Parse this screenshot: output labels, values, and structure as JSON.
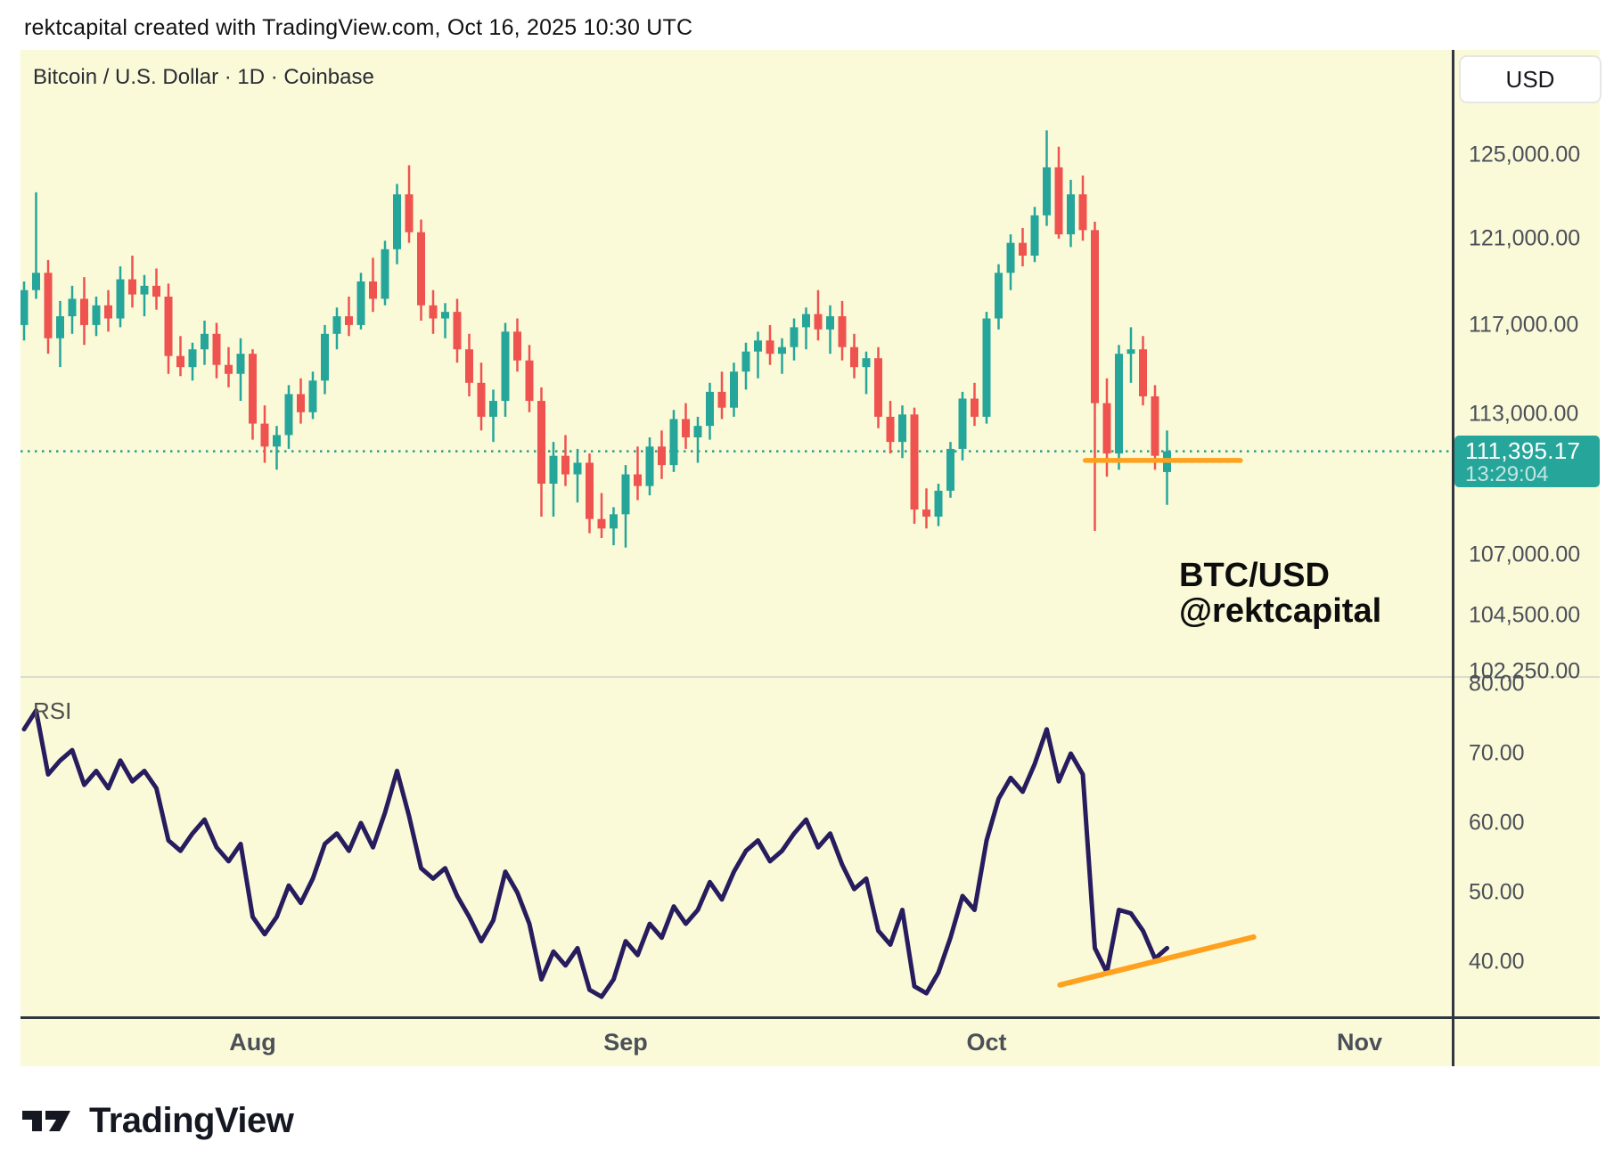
{
  "header": {
    "attribution": "rektcapital created with TradingView.com, Oct 16, 2025 10:30 UTC"
  },
  "chart": {
    "symbol_title": "Bitcoin / U.S. Dollar · 1D · Coinbase",
    "currency_button": "USD",
    "price_label": {
      "price": "111,395.17",
      "countdown": "13:29:04"
    },
    "annotation": {
      "line1": "BTC/USD",
      "line2": "@rektcapital"
    },
    "rsi_label": "RSI",
    "colors": {
      "background": "#fafad8",
      "up": "#26a69a",
      "down": "#ef5350",
      "rsi_line": "#271c5e",
      "drawing_orange": "#ffa11e",
      "current_price": "#2a9d8f"
    }
  },
  "chart_data": {
    "type": "candlestick_with_rsi",
    "title": "Bitcoin / U.S. Dollar · 1D · Coinbase",
    "price_unit": "USD thousands",
    "columns": [
      "date",
      "open",
      "high",
      "low",
      "close",
      "rsi"
    ],
    "last_price": 111395.17,
    "price_axis_ticks": [
      {
        "label": "125,000.00",
        "value": 125000
      },
      {
        "label": "121,000.00",
        "value": 121000
      },
      {
        "label": "117,000.00",
        "value": 117000
      },
      {
        "label": "113,000.00",
        "value": 113000
      },
      {
        "label": "107,000.00",
        "value": 107000
      },
      {
        "label": "104,500.00",
        "value": 104500
      },
      {
        "label": "102,250.00",
        "value": 102250
      }
    ],
    "rsi_axis_ticks": [
      {
        "label": "80.00",
        "value": 80
      },
      {
        "label": "70.00",
        "value": 70
      },
      {
        "label": "60.00",
        "value": 60
      },
      {
        "label": "50.00",
        "value": 50
      },
      {
        "label": "40.00",
        "value": 40
      }
    ],
    "time_axis_ticks": [
      {
        "label": "Aug",
        "day_index": 19
      },
      {
        "label": "Sep",
        "day_index": 50
      },
      {
        "label": "Oct",
        "day_index": 80
      },
      {
        "label": "Nov",
        "day_index": 111
      }
    ],
    "trendlines": {
      "price_support_line": {
        "price": 111000,
        "day_start": 88.2,
        "day_end": 101.1
      },
      "rsi_support_line": {
        "day_start": 86.1,
        "rsi_start": 36.7,
        "day_end": 102.2,
        "rsi_end": 43.6
      }
    },
    "candles": [
      [
        "Jul 13",
        117.0,
        119.0,
        116.3,
        118.6,
        73.5
      ],
      [
        "Jul 14",
        118.6,
        123.2,
        118.2,
        119.4,
        76.2
      ],
      [
        "Jul 15",
        119.4,
        120.0,
        115.7,
        116.4,
        67.0
      ],
      [
        "Jul 16",
        116.4,
        118.1,
        115.1,
        117.4,
        69.0
      ],
      [
        "Jul 17",
        117.4,
        118.8,
        116.6,
        118.2,
        70.5
      ],
      [
        "Jul 18",
        118.2,
        119.2,
        116.1,
        117.0,
        65.5
      ],
      [
        "Jul 19",
        117.0,
        118.3,
        116.5,
        117.9,
        67.5
      ],
      [
        "Jul 20",
        117.9,
        118.6,
        116.7,
        117.3,
        65.0
      ],
      [
        "Jul 21",
        117.3,
        119.7,
        116.9,
        119.1,
        69.0
      ],
      [
        "Jul 22",
        119.1,
        120.2,
        117.8,
        118.4,
        66.0
      ],
      [
        "Jul 23",
        118.4,
        119.3,
        117.4,
        118.8,
        67.5
      ],
      [
        "Jul 24",
        118.8,
        119.6,
        117.7,
        118.3,
        65.0
      ],
      [
        "Jul 25",
        118.3,
        118.9,
        114.8,
        115.6,
        57.5
      ],
      [
        "Jul 26",
        115.6,
        116.5,
        114.7,
        115.1,
        56.0
      ],
      [
        "Jul 27",
        115.1,
        116.2,
        114.5,
        115.9,
        58.5
      ],
      [
        "Jul 28",
        115.9,
        117.2,
        115.2,
        116.6,
        60.5
      ],
      [
        "Jul 29",
        116.6,
        117.1,
        114.6,
        115.2,
        56.5
      ],
      [
        "Jul 30",
        115.2,
        116.0,
        114.2,
        114.8,
        54.5
      ],
      [
        "Jul 31",
        114.8,
        116.4,
        113.6,
        115.7,
        57.0
      ],
      [
        "Aug 1",
        115.7,
        115.9,
        111.9,
        112.6,
        46.5
      ],
      [
        "Aug 2",
        112.6,
        113.4,
        110.9,
        111.6,
        44.0
      ],
      [
        "Aug 3",
        111.6,
        112.5,
        110.6,
        112.1,
        46.5
      ],
      [
        "Aug 4",
        112.1,
        114.3,
        111.5,
        113.9,
        51.0
      ],
      [
        "Aug 5",
        113.9,
        114.6,
        112.6,
        113.1,
        48.5
      ],
      [
        "Aug 6",
        113.1,
        114.9,
        112.8,
        114.5,
        52.0
      ],
      [
        "Aug 7",
        114.5,
        117.0,
        113.9,
        116.6,
        57.0
      ],
      [
        "Aug 8",
        116.6,
        117.8,
        115.9,
        117.4,
        58.5
      ],
      [
        "Aug 9",
        117.4,
        118.3,
        116.5,
        117.0,
        56.0
      ],
      [
        "Aug 10",
        117.0,
        119.4,
        116.8,
        119.0,
        60.0
      ],
      [
        "Aug 11",
        119.0,
        120.1,
        117.6,
        118.2,
        56.5
      ],
      [
        "Aug 12",
        118.2,
        120.9,
        117.9,
        120.5,
        61.5
      ],
      [
        "Aug 13",
        120.5,
        123.6,
        119.8,
        123.1,
        67.5
      ],
      [
        "Aug 14",
        123.1,
        124.5,
        120.8,
        121.3,
        61.0
      ],
      [
        "Aug 15",
        121.3,
        121.9,
        117.2,
        117.9,
        53.5
      ],
      [
        "Aug 16",
        117.9,
        118.6,
        116.6,
        117.3,
        52.0
      ],
      [
        "Aug 17",
        117.3,
        118.0,
        116.4,
        117.6,
        53.5
      ],
      [
        "Aug 18",
        117.6,
        118.2,
        115.3,
        115.9,
        49.5
      ],
      [
        "Aug 19",
        115.9,
        116.6,
        113.8,
        114.4,
        46.5
      ],
      [
        "Aug 20",
        114.4,
        115.3,
        112.3,
        112.9,
        43.0
      ],
      [
        "Aug 21",
        112.9,
        114.1,
        111.8,
        113.6,
        46.0
      ],
      [
        "Aug 22",
        113.6,
        117.1,
        112.9,
        116.7,
        53.0
      ],
      [
        "Aug 23",
        116.7,
        117.3,
        114.9,
        115.4,
        50.0
      ],
      [
        "Aug 24",
        115.4,
        116.1,
        113.1,
        113.6,
        45.5
      ],
      [
        "Aug 25",
        113.6,
        114.2,
        108.6,
        110.0,
        37.5
      ],
      [
        "Aug 26",
        110.0,
        111.8,
        108.6,
        111.2,
        41.5
      ],
      [
        "Aug 27",
        111.2,
        112.1,
        109.9,
        110.4,
        39.5
      ],
      [
        "Aug 28",
        110.4,
        111.5,
        109.2,
        110.9,
        42.0
      ],
      [
        "Aug 29",
        110.9,
        111.3,
        107.9,
        108.5,
        36.0
      ],
      [
        "Aug 30",
        108.5,
        109.6,
        107.7,
        108.1,
        35.0
      ],
      [
        "Aug 31",
        108.1,
        109.0,
        107.4,
        108.7,
        37.5
      ],
      [
        "Sep 1",
        108.7,
        110.8,
        107.3,
        110.4,
        43.0
      ],
      [
        "Sep 2",
        110.4,
        111.6,
        109.3,
        109.9,
        41.0
      ],
      [
        "Sep 3",
        109.9,
        112.0,
        109.5,
        111.6,
        45.5
      ],
      [
        "Sep 4",
        111.6,
        112.3,
        110.2,
        110.8,
        43.5
      ],
      [
        "Sep 5",
        110.8,
        113.2,
        110.5,
        112.8,
        48.0
      ],
      [
        "Sep 6",
        112.8,
        113.5,
        111.5,
        112.0,
        45.5
      ],
      [
        "Sep 7",
        112.0,
        112.9,
        110.9,
        112.5,
        47.5
      ],
      [
        "Sep 8",
        112.5,
        114.4,
        111.9,
        114.0,
        51.5
      ],
      [
        "Sep 9",
        114.0,
        114.9,
        112.8,
        113.3,
        49.0
      ],
      [
        "Sep 10",
        113.3,
        115.3,
        112.9,
        114.9,
        53.0
      ],
      [
        "Sep 11",
        114.9,
        116.2,
        114.1,
        115.8,
        56.0
      ],
      [
        "Sep 12",
        115.8,
        116.7,
        114.6,
        116.3,
        57.5
      ],
      [
        "Sep 13",
        116.3,
        117.0,
        115.2,
        115.7,
        54.5
      ],
      [
        "Sep 14",
        115.7,
        116.4,
        114.8,
        116.0,
        56.0
      ],
      [
        "Sep 15",
        116.0,
        117.3,
        115.4,
        116.9,
        58.5
      ],
      [
        "Sep 16",
        116.9,
        117.8,
        115.9,
        117.5,
        60.5
      ],
      [
        "Sep 17",
        117.5,
        118.6,
        116.3,
        116.8,
        56.5
      ],
      [
        "Sep 18",
        116.8,
        117.9,
        115.7,
        117.4,
        58.5
      ],
      [
        "Sep 19",
        117.4,
        118.1,
        115.4,
        116.0,
        54.0
      ],
      [
        "Sep 20",
        116.0,
        116.6,
        114.6,
        115.1,
        50.5
      ],
      [
        "Sep 21",
        115.1,
        115.8,
        113.9,
        115.5,
        52.0
      ],
      [
        "Sep 22",
        115.5,
        116.0,
        112.4,
        112.9,
        44.5
      ],
      [
        "Sep 23",
        112.9,
        113.6,
        111.3,
        111.8,
        42.5
      ],
      [
        "Sep 24",
        111.8,
        113.4,
        111.1,
        113.0,
        47.5
      ],
      [
        "Sep 25",
        113.0,
        113.3,
        108.3,
        108.9,
        36.5
      ],
      [
        "Sep 26",
        108.9,
        109.8,
        108.1,
        108.6,
        35.5
      ],
      [
        "Sep 27",
        108.6,
        110.0,
        108.2,
        109.7,
        38.5
      ],
      [
        "Sep 28",
        109.7,
        111.8,
        109.4,
        111.5,
        43.5
      ],
      [
        "Sep 29",
        111.5,
        114.0,
        111.0,
        113.7,
        49.5
      ],
      [
        "Sep 30",
        113.7,
        114.4,
        112.5,
        112.9,
        47.5
      ],
      [
        "Oct 1",
        112.9,
        117.6,
        112.6,
        117.3,
        57.5
      ],
      [
        "Oct 2",
        117.3,
        119.8,
        116.8,
        119.4,
        63.5
      ],
      [
        "Oct 3",
        119.4,
        121.2,
        118.6,
        120.8,
        66.5
      ],
      [
        "Oct 4",
        120.8,
        121.5,
        119.7,
        120.2,
        64.5
      ],
      [
        "Oct 5",
        120.2,
        122.5,
        119.9,
        122.1,
        68.5
      ],
      [
        "Oct 6",
        122.1,
        126.2,
        121.6,
        124.4,
        73.5
      ],
      [
        "Oct 7",
        124.4,
        125.4,
        121.0,
        121.2,
        66.0
      ],
      [
        "Oct 8",
        121.2,
        123.8,
        120.6,
        123.1,
        70.0
      ],
      [
        "Oct 9",
        123.1,
        124.0,
        120.9,
        121.4,
        67.0
      ],
      [
        "Oct 10",
        121.4,
        121.8,
        108.0,
        113.5,
        42.0
      ],
      [
        "Oct 11",
        113.5,
        114.6,
        110.3,
        111.3,
        38.5
      ],
      [
        "Oct 12",
        111.3,
        116.1,
        110.6,
        115.7,
        47.5
      ],
      [
        "Oct 13",
        115.7,
        116.9,
        114.4,
        115.9,
        47.0
      ],
      [
        "Oct 14",
        115.9,
        116.5,
        113.4,
        113.8,
        44.5
      ],
      [
        "Oct 15",
        113.8,
        114.3,
        110.6,
        111.2,
        40.5
      ],
      [
        "Oct 16",
        110.5,
        112.3,
        109.1,
        111.395,
        42.0
      ]
    ]
  },
  "footer": {
    "logo_text": "TradingView"
  }
}
